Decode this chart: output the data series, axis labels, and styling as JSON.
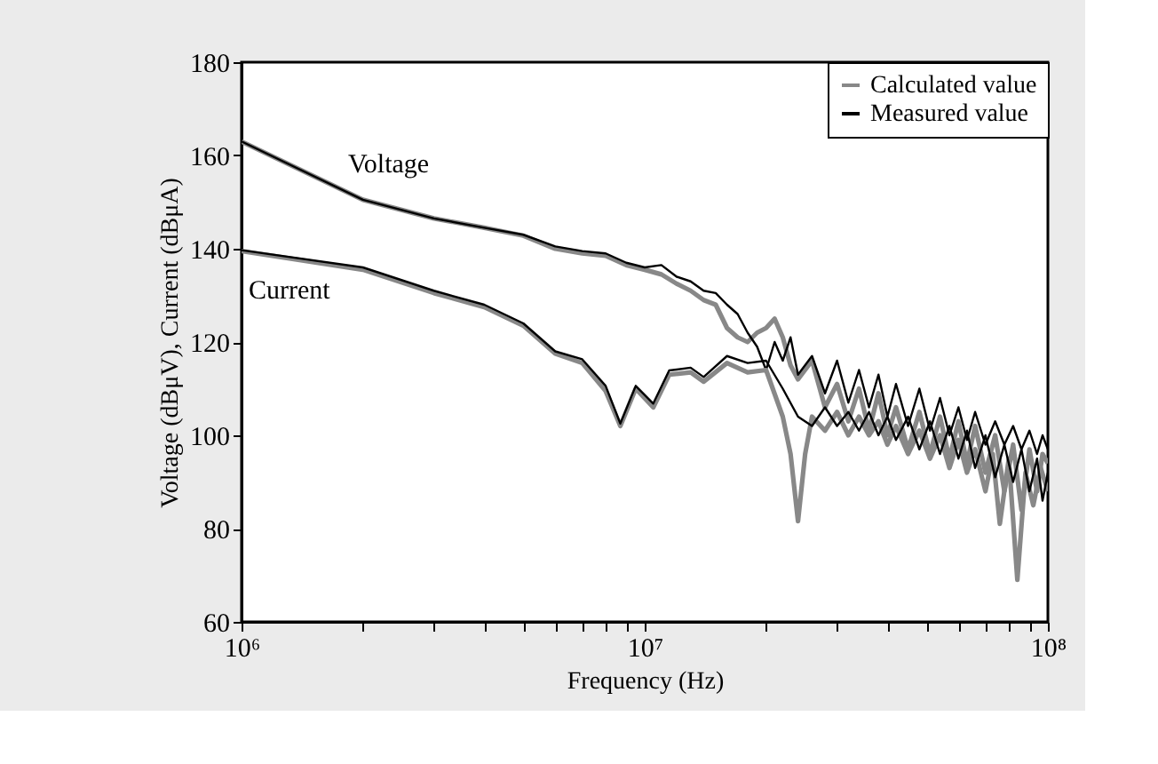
{
  "chart_data": {
    "type": "line",
    "xlabel": "Frequency (Hz)",
    "ylabel": "Voltage (dBμV), Current (dBμA)",
    "log": "x",
    "grid": false,
    "legend": "top right",
    "line_style": "solid",
    "marker": "none",
    "xlim": [
      1000000,
      100000000
    ],
    "ylim": [
      60,
      180
    ],
    "xticks": [
      {
        "value": 1000000,
        "label": "10⁶"
      },
      {
        "value": 2000000,
        "label": null
      },
      {
        "value": 3000000,
        "label": null
      },
      {
        "value": 4000000,
        "label": null
      },
      {
        "value": 5000000,
        "label": null
      },
      {
        "value": 6000000,
        "label": null
      },
      {
        "value": 7000000,
        "label": null
      },
      {
        "value": 8000000,
        "label": null
      },
      {
        "value": 9000000,
        "label": null
      },
      {
        "value": 10000000,
        "label": "10⁷"
      },
      {
        "value": 20000000,
        "label": null
      },
      {
        "value": 30000000,
        "label": null
      },
      {
        "value": 40000000,
        "label": null
      },
      {
        "value": 50000000,
        "label": null
      },
      {
        "value": 60000000,
        "label": null
      },
      {
        "value": 70000000,
        "label": null
      },
      {
        "value": 80000000,
        "label": null
      },
      {
        "value": 90000000,
        "label": null
      },
      {
        "value": 100000000,
        "label": "10⁸"
      }
    ],
    "yticks": [
      60,
      80,
      100,
      120,
      140,
      160,
      180
    ],
    "annotations": [
      "Voltage",
      "Current"
    ],
    "series": [
      {
        "name": "Calculated value",
        "color": "#888888",
        "x": [
          1000000,
          2000000,
          3000000,
          4000000,
          5000000,
          6000000,
          7000000,
          8000000,
          9000000,
          10000000,
          11000000,
          12000000,
          13000000,
          14000000,
          15000000,
          16000000,
          17000000,
          18000000,
          19000000,
          20000000,
          21000000,
          22000000,
          23000000,
          24000000,
          26000000,
          28000000,
          30000000,
          32000000,
          34000000,
          36000000,
          38000000,
          40000000,
          42000000,
          45000000,
          48000000,
          51000000,
          54000000,
          57000000,
          60000000,
          63000000,
          66000000,
          70000000,
          74000000,
          78000000,
          82000000,
          86000000,
          90000000,
          94000000,
          97000000,
          100000000
        ],
        "values": [
          163,
          150.5,
          146.5,
          144.5,
          142.8,
          140,
          139,
          138.5,
          136.5,
          135.5,
          134.5,
          132.5,
          131,
          129,
          128,
          123,
          121,
          120,
          122,
          123,
          125,
          121,
          115,
          112,
          116,
          106,
          111,
          103,
          110,
          101,
          109,
          100,
          106,
          97,
          105,
          96,
          104,
          95,
          103,
          94,
          102,
          92,
          100,
          88,
          98,
          84,
          97,
          88,
          96,
          94
        ]
      },
      {
        "name": "Measured value",
        "color": "#000000",
        "x": [
          1000000,
          2000000,
          3000000,
          4000000,
          5000000,
          6000000,
          7000000,
          8000000,
          9000000,
          10000000,
          11000000,
          12000000,
          13000000,
          14000000,
          15000000,
          16000000,
          17000000,
          18000000,
          19000000,
          20000000,
          21000000,
          22000000,
          23000000,
          24000000,
          26000000,
          28000000,
          30000000,
          32000000,
          34000000,
          36000000,
          38000000,
          40000000,
          42000000,
          45000000,
          48000000,
          51000000,
          54000000,
          57000000,
          60000000,
          63000000,
          66000000,
          70000000,
          74000000,
          78000000,
          82000000,
          86000000,
          90000000,
          94000000,
          97000000,
          100000000
        ],
        "values": [
          163,
          150.5,
          146.5,
          144.5,
          143,
          140.5,
          139.5,
          139,
          137,
          136,
          136.5,
          134,
          133,
          131,
          130.5,
          128,
          126,
          122,
          119,
          114,
          120,
          116,
          121,
          113,
          117,
          109,
          116,
          107,
          114,
          106,
          113,
          104,
          111,
          102,
          110,
          101,
          108,
          100,
          106,
          99,
          105,
          98,
          103,
          98,
          102,
          97,
          101,
          96,
          100,
          97
        ]
      },
      {
        "color": "#888888",
        "x": [
          1000000,
          2000000,
          3000000,
          4000000,
          5000000,
          6000000,
          7000000,
          8000000,
          8700000,
          9500000,
          10500000,
          11500000,
          13000000,
          14000000,
          16000000,
          18000000,
          20000000,
          22000000,
          23000000,
          24000000,
          25000000,
          26000000,
          28000000,
          30000000,
          32000000,
          34000000,
          36000000,
          38000000,
          40000000,
          42000000,
          45000000,
          48000000,
          51000000,
          54000000,
          57000000,
          60000000,
          63000000,
          66000000,
          70000000,
          73000000,
          76000000,
          80000000,
          84000000,
          88000000,
          92000000,
          96000000,
          100000000
        ],
        "values": [
          139.5,
          135.5,
          130.5,
          127.5,
          123.5,
          117.5,
          115.5,
          109.5,
          102,
          110,
          106,
          113,
          113.5,
          111.5,
          115.5,
          113.5,
          114,
          104,
          96,
          81.6,
          96,
          104,
          101,
          105,
          100,
          104,
          100,
          103,
          98,
          102,
          96,
          101,
          95,
          100,
          93,
          99,
          92,
          97,
          88,
          96,
          81,
          95,
          69,
          92,
          85,
          93,
          88
        ]
      },
      {
        "color": "#000000",
        "x": [
          1000000,
          2000000,
          3000000,
          4000000,
          5000000,
          6000000,
          7000000,
          8000000,
          8700000,
          9500000,
          10500000,
          11500000,
          13000000,
          14000000,
          16000000,
          18000000,
          20000000,
          22000000,
          24000000,
          26000000,
          28000000,
          30000000,
          32000000,
          34000000,
          36000000,
          38000000,
          40000000,
          42000000,
          45000000,
          48000000,
          51000000,
          54000000,
          57000000,
          60000000,
          63000000,
          66000000,
          70000000,
          74000000,
          78000000,
          82000000,
          86000000,
          90000000,
          94000000,
          97000000,
          100000000
        ],
        "values": [
          139.7,
          136,
          131,
          128,
          124,
          118,
          116.3,
          110.6,
          102.5,
          110.6,
          106.8,
          113.9,
          114.5,
          112.5,
          117,
          115.5,
          116,
          110,
          104,
          102,
          106,
          102,
          105,
          101,
          105,
          100,
          104,
          99,
          104,
          97,
          103,
          96,
          102,
          95,
          101,
          93,
          100,
          91,
          98,
          90,
          97,
          88,
          95,
          86,
          92
        ]
      }
    ]
  }
}
